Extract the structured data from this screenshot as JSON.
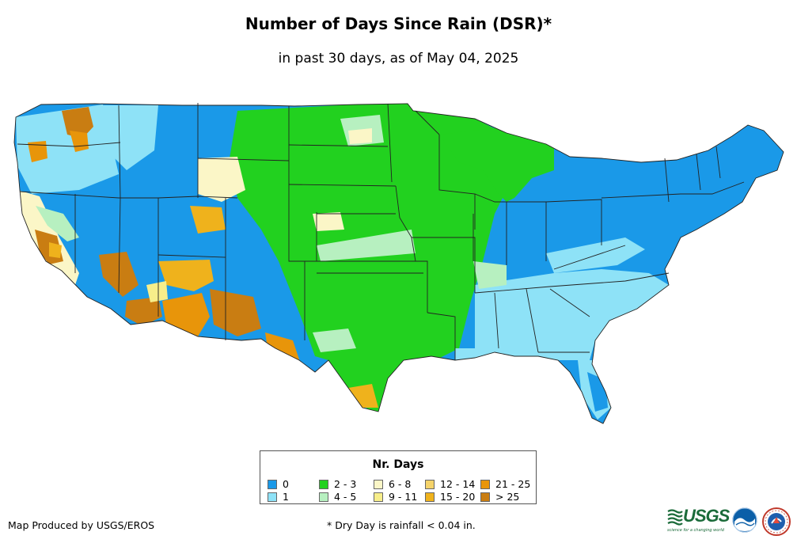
{
  "title": "Number of Days Since Rain (DSR)*",
  "subtitle": "in past 30 days, as of May 04, 2025",
  "legend": {
    "title": "Nr. Days",
    "items": [
      {
        "label": "0",
        "color": "#1a99e8"
      },
      {
        "label": "1",
        "color": "#8ee2f7"
      },
      {
        "label": "2 - 3",
        "color": "#22d11f"
      },
      {
        "label": "4 - 5",
        "color": "#b7f0c0"
      },
      {
        "label": "6 - 8",
        "color": "#fbf6c7"
      },
      {
        "label": "9 - 11",
        "color": "#f7ee8a"
      },
      {
        "label": "12 - 14",
        "color": "#f5d36a"
      },
      {
        "label": "15 - 20",
        "color": "#efb21c"
      },
      {
        "label": "21 - 25",
        "color": "#e8950a"
      },
      {
        "label": "> 25",
        "color": "#c97d12"
      }
    ]
  },
  "footer": {
    "producer": "Map Produced by USGS/EROS",
    "note": "* Dry Day is rainfall < 0.04 in."
  },
  "logos": {
    "usgs": "USGS",
    "usgs_tagline": "science for a changing world",
    "noaa": "NOAA",
    "nws": "National Weather Service"
  }
}
